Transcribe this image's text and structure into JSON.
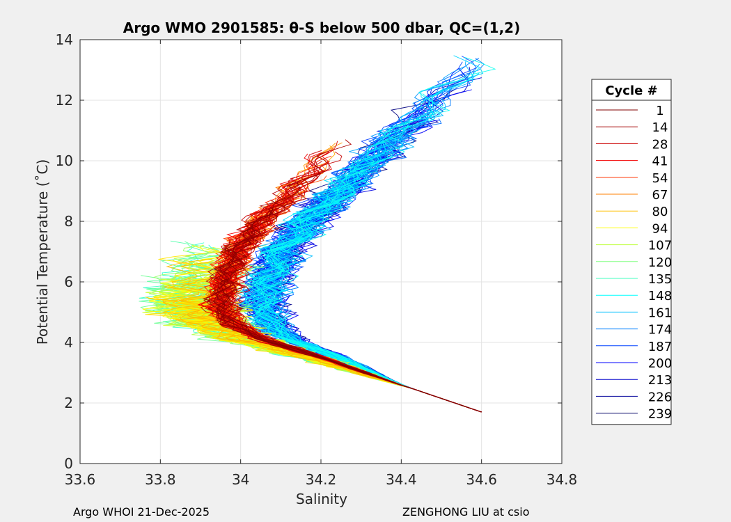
{
  "chart_data": {
    "type": "line",
    "title": "Argo WMO 2901585: θ-S below 500 dbar,  QC=(1,2)",
    "xlabel": "Salinity",
    "ylabel": "Potential Temperature (˚C)",
    "xlim": [
      33.6,
      34.8
    ],
    "ylim": [
      0,
      14
    ],
    "xticks": [
      33.6,
      33.8,
      34,
      34.2,
      34.4,
      34.6,
      34.8
    ],
    "yticks": [
      0,
      2,
      4,
      6,
      8,
      10,
      12,
      14
    ],
    "xtick_labels": [
      "33.6",
      "33.8",
      "34",
      "34.2",
      "34.4",
      "34.6",
      "34.8"
    ],
    "ytick_labels": [
      "0",
      "2",
      "4",
      "6",
      "8",
      "10",
      "12",
      "14"
    ],
    "grid": true,
    "colormap": "jet",
    "legend": {
      "title": "Cycle #",
      "placement": "right",
      "entries": [
        {
          "label": "1",
          "color": "#800000"
        },
        {
          "label": "14",
          "color": "#a30000"
        },
        {
          "label": "28",
          "color": "#cc0000"
        },
        {
          "label": "41",
          "color": "#f20000"
        },
        {
          "label": "54",
          "color": "#ff3300"
        },
        {
          "label": "67",
          "color": "#ff7f00"
        },
        {
          "label": "80",
          "color": "#ffbf00"
        },
        {
          "label": "94",
          "color": "#ffff00"
        },
        {
          "label": "107",
          "color": "#bfff40"
        },
        {
          "label": "120",
          "color": "#80ff80"
        },
        {
          "label": "135",
          "color": "#40ffbf"
        },
        {
          "label": "148",
          "color": "#00ffff"
        },
        {
          "label": "161",
          "color": "#00bfff"
        },
        {
          "label": "174",
          "color": "#0080ff"
        },
        {
          "label": "187",
          "color": "#0040ff"
        },
        {
          "label": "200",
          "color": "#0000ff"
        },
        {
          "label": "213",
          "color": "#0000cc"
        },
        {
          "label": "226",
          "color": "#000099"
        },
        {
          "label": "239",
          "color": "#000066"
        }
      ]
    },
    "envelope": {
      "salinity": [
        34.6,
        34.4,
        34.25,
        34.1,
        34.04,
        34.02,
        34.03,
        34.06,
        34.12,
        34.2,
        34.3,
        34.5
      ],
      "potential_temperature": [
        1.7,
        2.6,
        3.4,
        4.1,
        4.6,
        5.2,
        6.0,
        7.0,
        8.0,
        9.0,
        10.5,
        13.0
      ]
    }
  },
  "footer": {
    "left": "Argo WHOI 21-Dec-2025",
    "right": "ZENGHONG LIU at csio"
  }
}
